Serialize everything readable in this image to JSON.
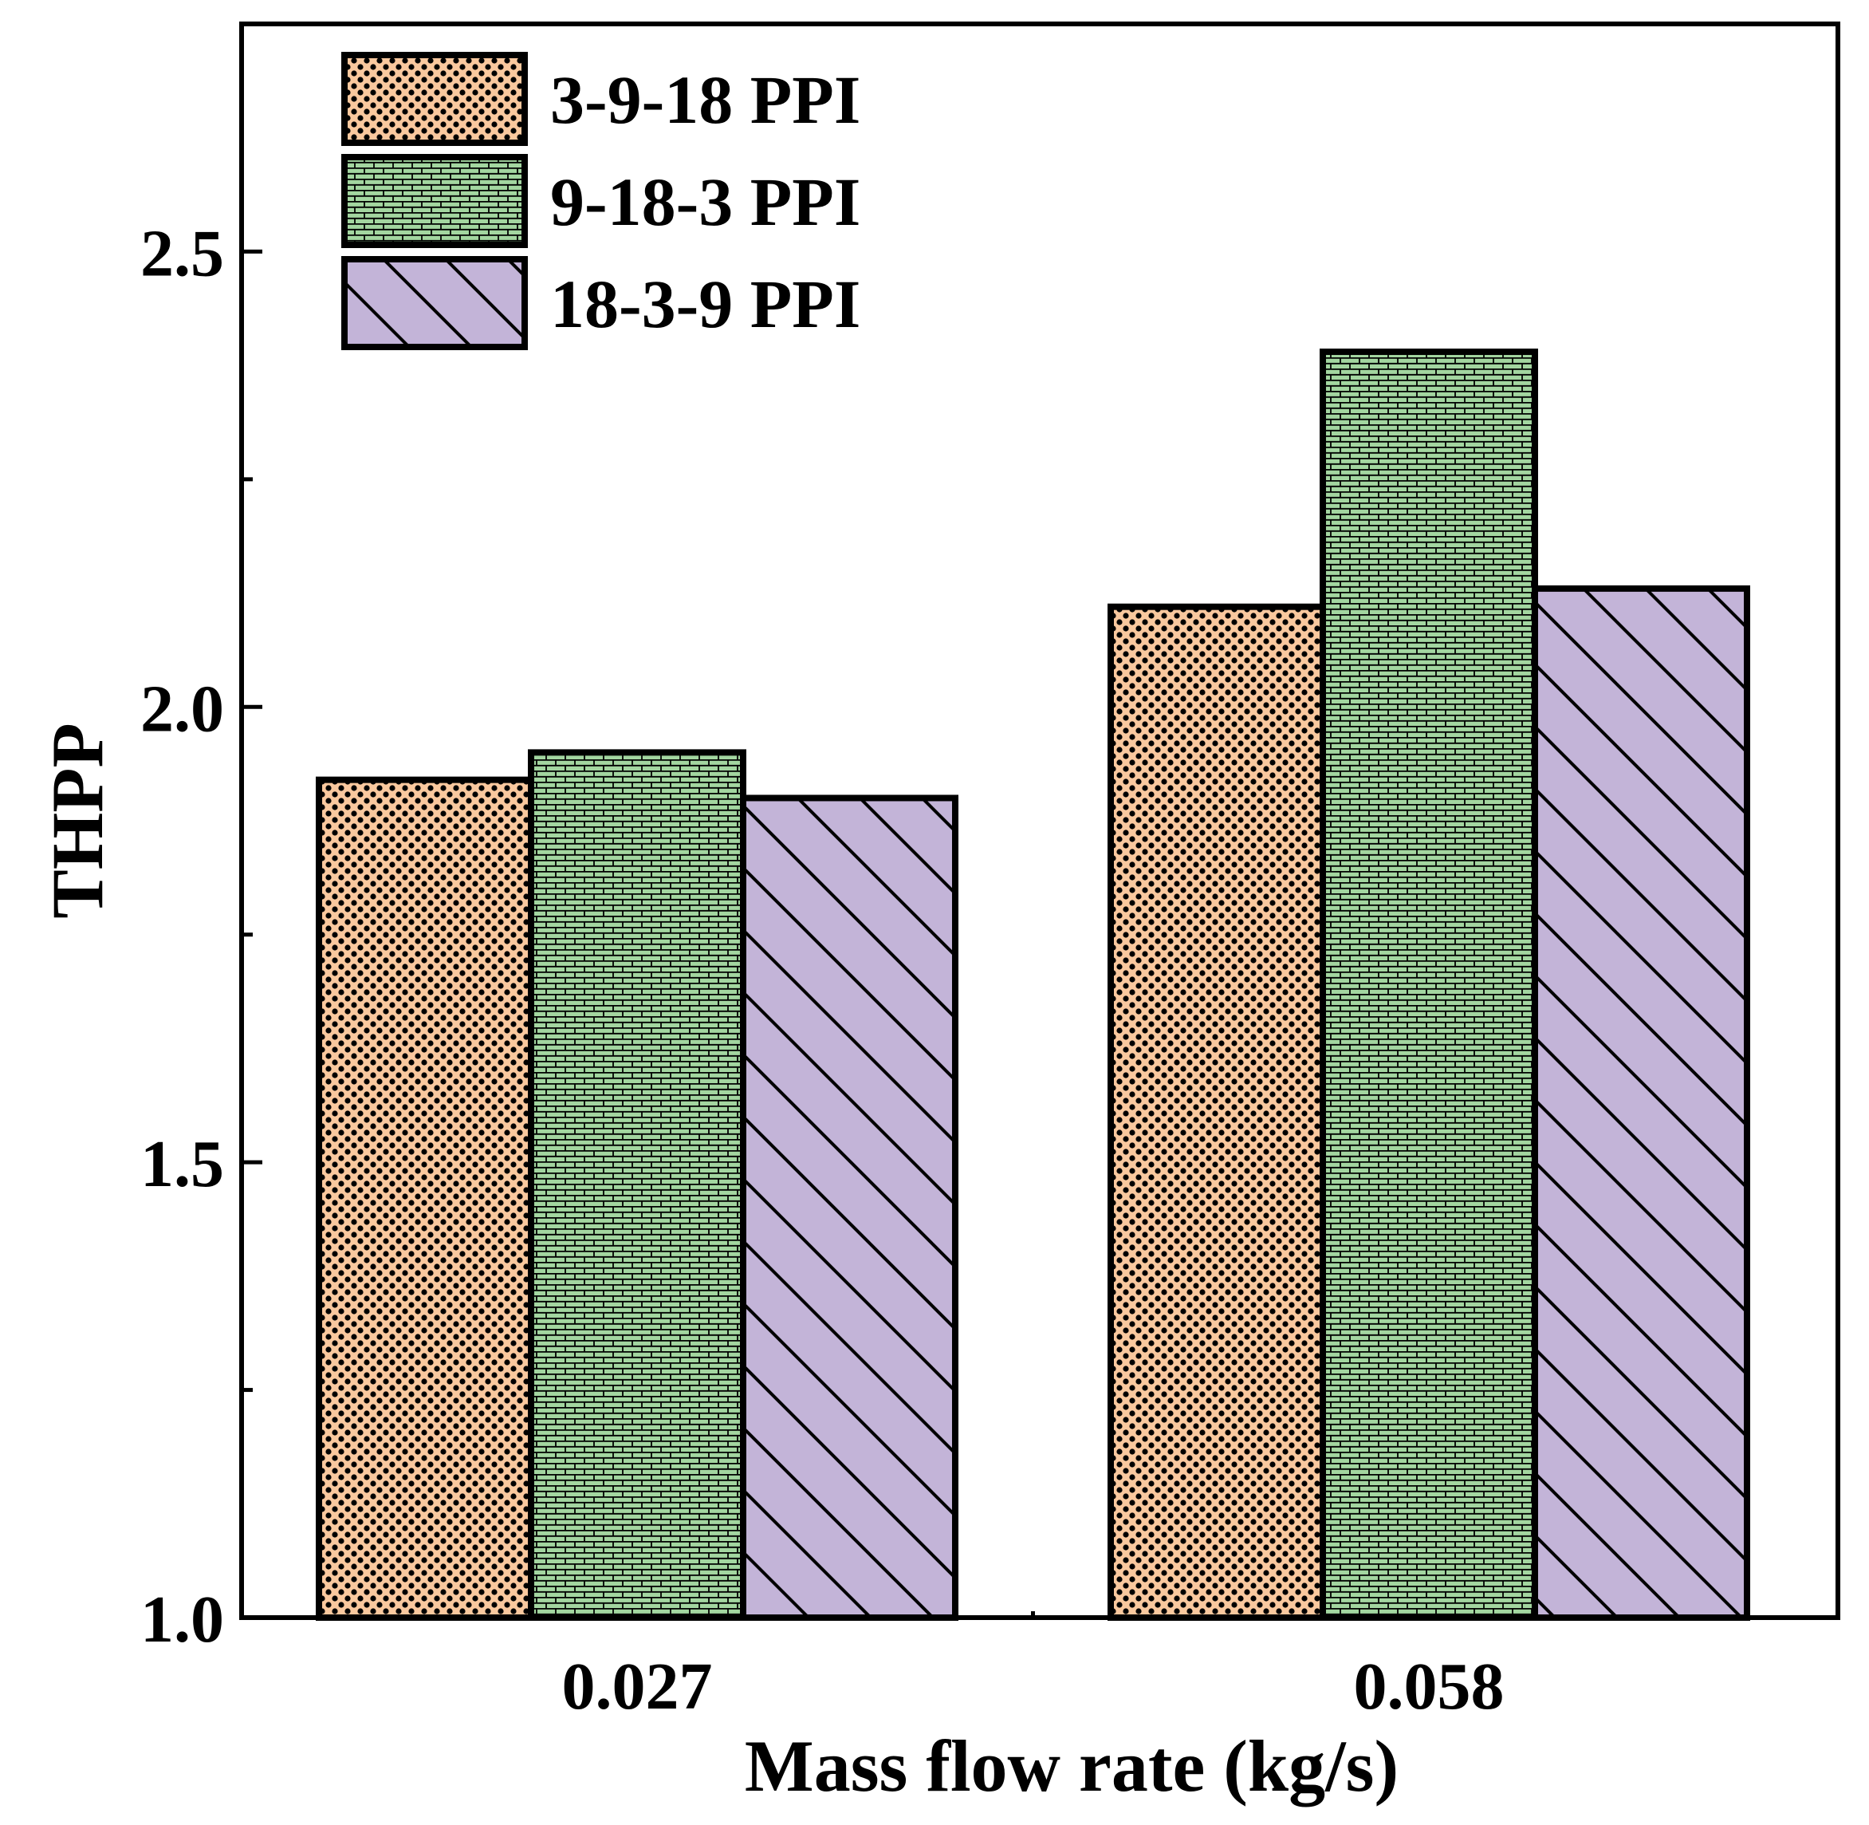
{
  "chart_data": {
    "type": "bar",
    "title": "",
    "xlabel": "Mass flow rate (kg/s)",
    "ylabel": "THPP",
    "categories": [
      "0.027",
      "0.058"
    ],
    "ylim": [
      1.0,
      2.75
    ],
    "yticks": [
      1.0,
      1.5,
      2.0,
      2.5
    ],
    "ytick_labels": [
      "1.0",
      "1.5",
      "2.0",
      "2.5"
    ],
    "minor_yticks": [
      1.25,
      1.75,
      2.25
    ],
    "grid": false,
    "legend_position": "top-left",
    "series": [
      {
        "name": "3-9-18 PPI",
        "values": [
          1.92,
          2.11
        ],
        "color": "#F9C89E",
        "pattern": "dots"
      },
      {
        "name": "9-18-3 PPI",
        "values": [
          1.95,
          2.39
        ],
        "color": "#A3D6A0",
        "pattern": "bricks"
      },
      {
        "name": "18-3-9 PPI",
        "values": [
          1.9,
          2.13
        ],
        "color": "#C3B4D8",
        "pattern": "diagonal"
      }
    ]
  }
}
